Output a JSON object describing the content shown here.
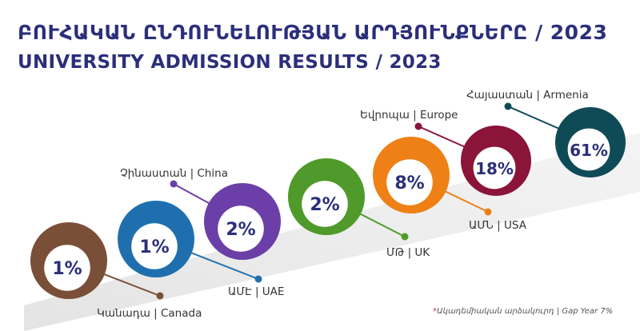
{
  "header": {
    "title_hy": "ԲՈՒՀԱԿԱՆ ԸՆԴՈՒՆԵԼՈՒԹՅԱՆ ԱՐԴՅՈՒՆՔՆԵՐԸ / 2023",
    "title_en": "UNIVERSITY ADMISSION RESULTS / 2023"
  },
  "footnote": {
    "asterisk": "*",
    "text": "Ակադեմիական արձակուրդ | Gap Year 7%"
  },
  "chart_data": {
    "type": "bubble",
    "categories": [
      "Canada",
      "UAE",
      "China",
      "UK",
      "USA",
      "Europe",
      "Armenia"
    ],
    "points": [
      {
        "label": "Կանադա | Canada",
        "value": "1%",
        "num": 1,
        "color": "#7a4f37"
      },
      {
        "label": "ԱՄԷ | UAE",
        "value": "1%",
        "num": 1,
        "color": "#1f6fae"
      },
      {
        "label": "Չինաստան | China",
        "value": "2%",
        "num": 2,
        "color": "#6b3fa7"
      },
      {
        "label": "ՄԹ | UK",
        "value": "2%",
        "num": 2,
        "color": "#4f9a2a"
      },
      {
        "label": "ԱՄՆ | USA",
        "value": "8%",
        "num": 8,
        "color": "#ee8016"
      },
      {
        "label": "Եվրոպա | Europe",
        "value": "18%",
        "num": 18,
        "color": "#8a1538"
      },
      {
        "label": "Հայաստան | Armenia",
        "value": "61%",
        "num": 61,
        "color": "#0f4a57"
      }
    ]
  }
}
